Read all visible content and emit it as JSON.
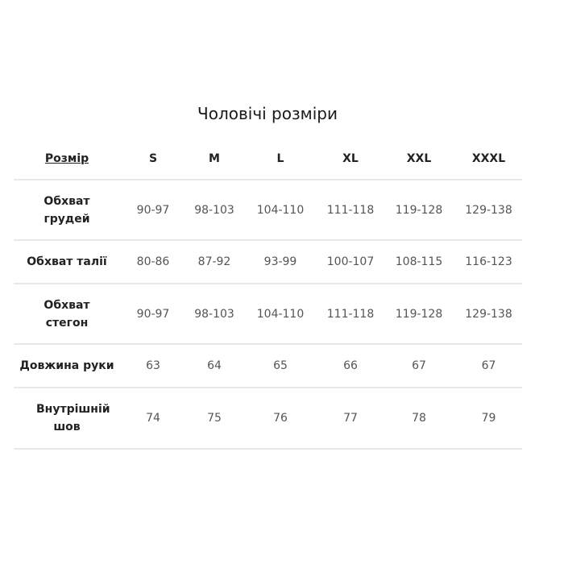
{
  "title": "Чоловічі розміри",
  "table": {
    "header_label": "Розмір",
    "sizes": [
      "S",
      "M",
      "L",
      "XL",
      "XXL",
      "XXXL"
    ],
    "rows": [
      {
        "label": "Обхват грудей",
        "values": [
          "90-97",
          "98-103",
          "104-110",
          "111-118",
          "119-128",
          "129-138"
        ]
      },
      {
        "label": "Обхват талії",
        "values": [
          "80-86",
          "87-92",
          "93-99",
          "100-107",
          "108-115",
          "116-123"
        ]
      },
      {
        "label": "Обхват стегон",
        "values": [
          "90-97",
          "98-103",
          "104-110",
          "111-118",
          "119-128",
          "129-138"
        ]
      },
      {
        "label": "Довжина руки",
        "values": [
          "63",
          "64",
          "65",
          "66",
          "67",
          "67"
        ]
      },
      {
        "label": "Внутрішній шов",
        "values": [
          "74",
          "75",
          "76",
          "77",
          "78",
          "79"
        ]
      }
    ]
  }
}
